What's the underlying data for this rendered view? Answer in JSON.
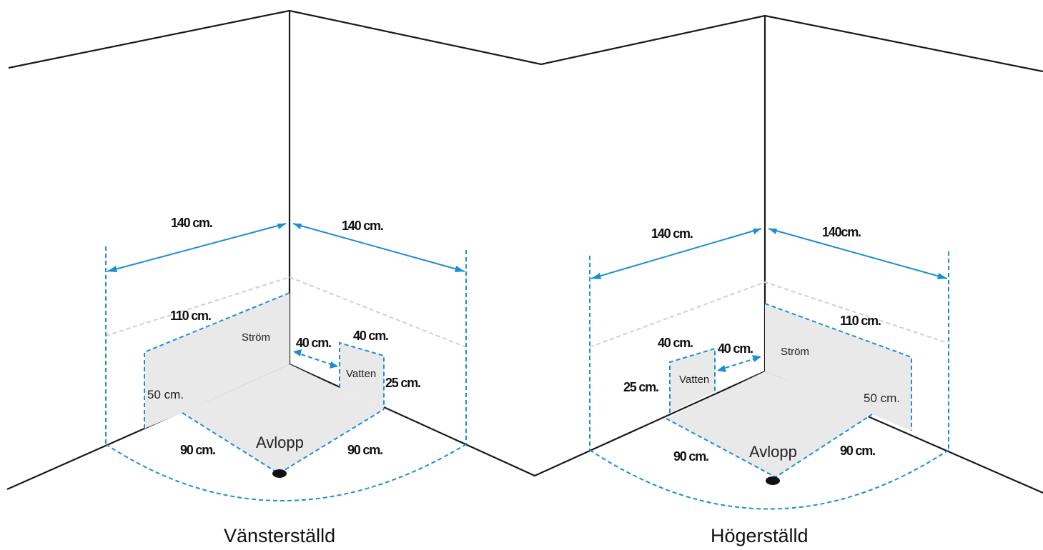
{
  "left": {
    "caption": "Vänsterställd",
    "dim_left_wall": "140 cm.",
    "dim_right_wall": "140 cm.",
    "dim_power_width": "110 cm.",
    "power_label": "Ström",
    "dim_power_height": "50 cm.",
    "dim_water_offset": "40 cm.",
    "dim_water_width": "40 cm.",
    "water_label": "Vatten",
    "dim_water_height": "25 cm.",
    "dim_floor_left": "90 cm.",
    "dim_floor_right": "90 cm.",
    "drain_label": "Avlopp"
  },
  "right": {
    "caption": "Högerställd",
    "dim_left_wall": "140 cm.",
    "dim_right_wall": "140cm.",
    "dim_power_width": "110 cm.",
    "power_label": "Ström",
    "dim_power_height": "50 cm.",
    "dim_water_offset": "40 cm.",
    "dim_water_width": "40 cm.",
    "water_label": "Vatten",
    "dim_water_height": "25 cm.",
    "dim_floor_left": "90 cm.",
    "dim_floor_right": "90 cm.",
    "drain_label": "Avlopp"
  }
}
